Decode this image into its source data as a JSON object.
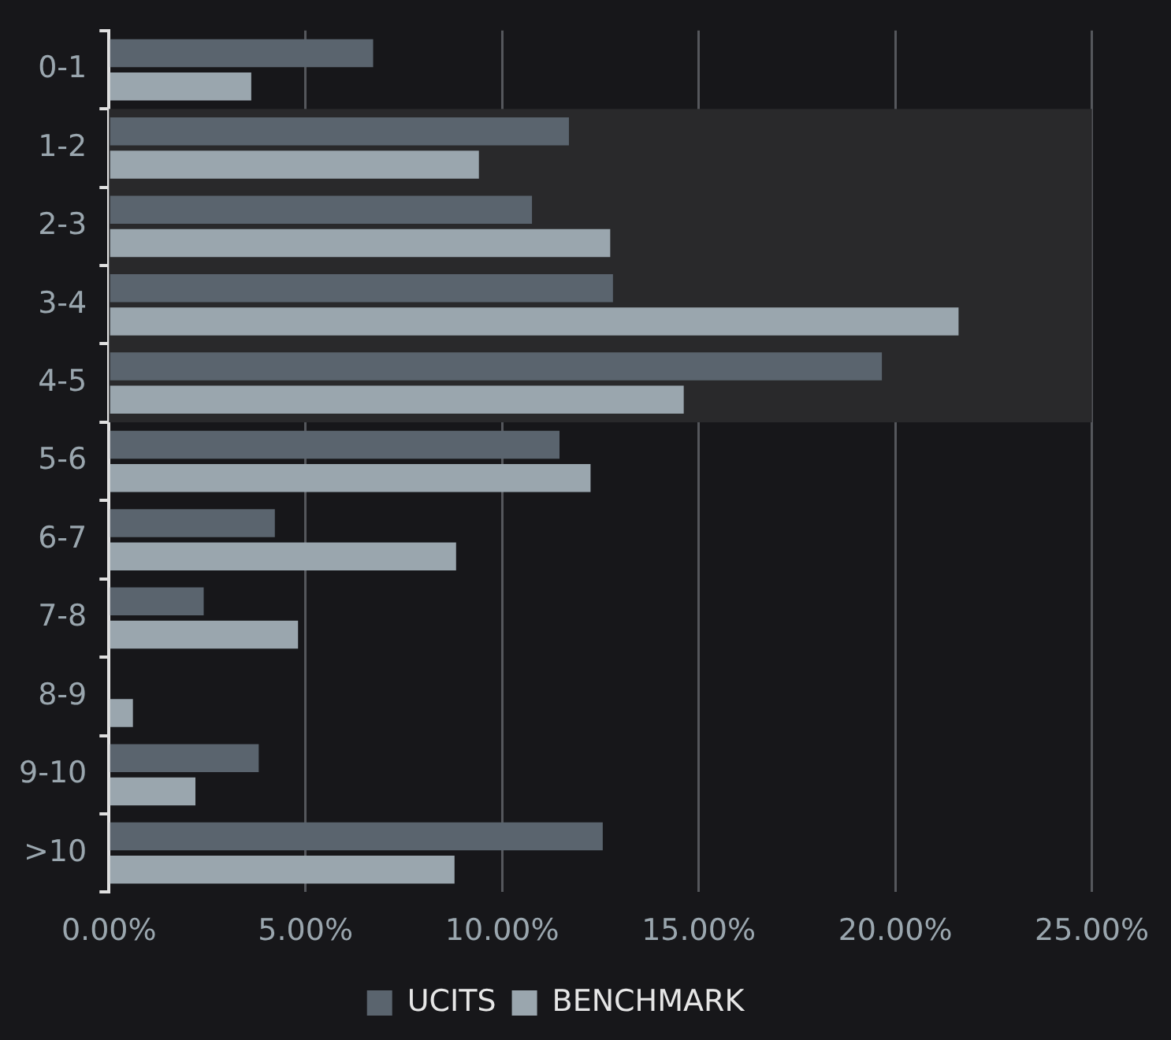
{
  "chart_data": {
    "type": "bar",
    "orientation": "horizontal",
    "categories": [
      "0-1",
      "1-2",
      "2-3",
      "3-4",
      "4-5",
      "5-6",
      "6-7",
      "7-8",
      "8-9",
      "9-10",
      ">10"
    ],
    "series": [
      {
        "name": "UCITS",
        "color": "#5a646e",
        "values": [
          6.72,
          11.7,
          10.76,
          12.82,
          19.66,
          11.46,
          4.22,
          2.41,
          0,
          3.81,
          12.56
        ]
      },
      {
        "name": "BENCHMARK",
        "color": "#9aa6ae",
        "values": [
          3.62,
          9.41,
          12.75,
          21.61,
          14.62,
          12.25,
          8.83,
          4.81,
          0.61,
          2.2,
          8.79
        ]
      }
    ],
    "xlim": [
      0,
      25
    ],
    "xticks": [
      {
        "value": 0,
        "label": "0.00%"
      },
      {
        "value": 5,
        "label": "5.00%"
      },
      {
        "value": 10,
        "label": "10.00%"
      },
      {
        "value": 15,
        "label": "15.00%"
      },
      {
        "value": 20,
        "label": "20.00%"
      },
      {
        "value": 25,
        "label": "25.00%"
      }
    ],
    "bands": [
      {
        "axis": "y",
        "from": "1-2",
        "to": "4-5",
        "color": "#29292b"
      }
    ],
    "grid": "x",
    "legend": "bottom"
  }
}
